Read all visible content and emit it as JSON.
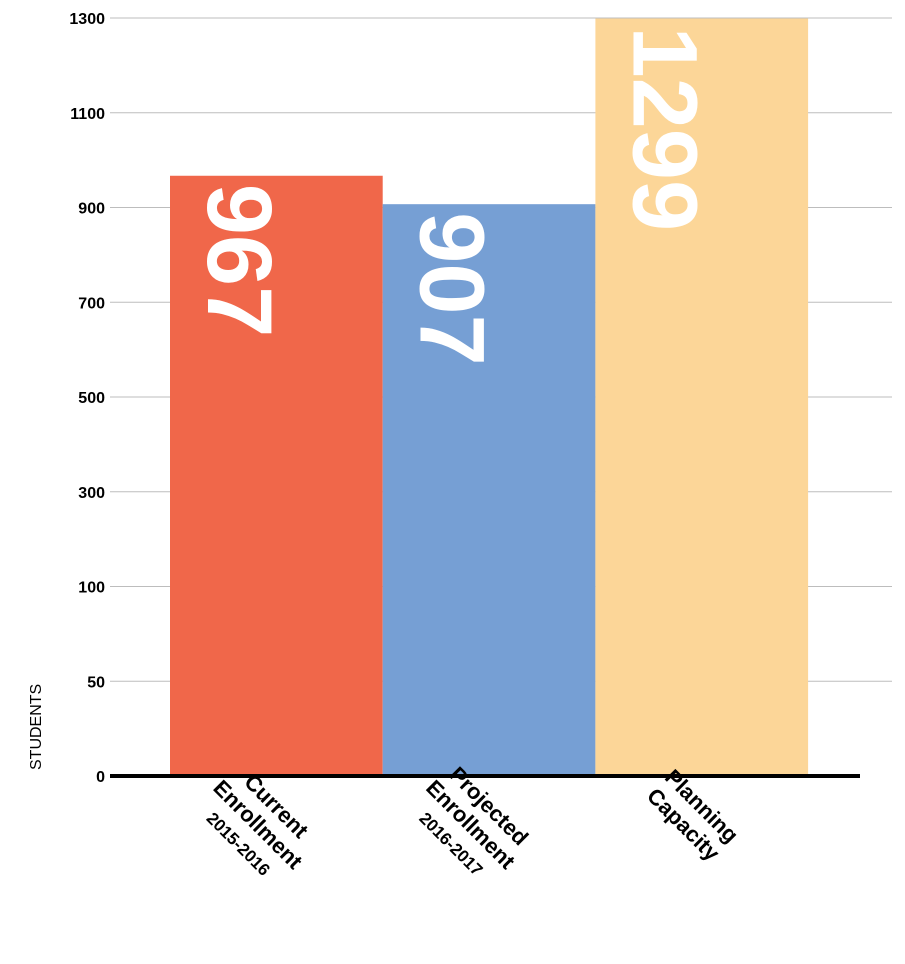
{
  "chart_data": {
    "type": "bar",
    "ylabel": "STUDENTS",
    "yticks": [
      0,
      50,
      100,
      300,
      500,
      700,
      900,
      1100,
      1300
    ],
    "categories": [
      [
        "Current",
        "Enrollment",
        "2015-2016"
      ],
      [
        "Projected",
        "Enrollment",
        "2016-2017"
      ],
      [
        "Planning",
        "Capacity"
      ]
    ],
    "values": [
      967,
      907,
      1299
    ],
    "data_labels": [
      "967",
      "907",
      "1299"
    ],
    "colors": [
      "#f0674a",
      "#769fd4",
      "#fcd698"
    ],
    "grid": true,
    "axis_scale": "nonlinear (tick positions evenly spaced)"
  }
}
